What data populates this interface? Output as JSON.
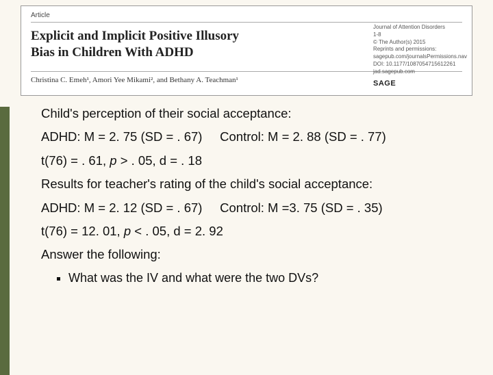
{
  "header": {
    "label": "Article",
    "title_line1": "Explicit and Implicit Positive Illusory",
    "title_line2": "Bias in Children With ADHD",
    "authors": "Christina C. Emeh¹, Amori Yee Mikami², and Bethany A. Teachman¹",
    "meta": {
      "journal": "Journal of Attention Disorders",
      "pages": "1-8",
      "copyright": "© The Author(s) 2015",
      "reprints": "Reprints and permissions:",
      "reprints_url": "sagepub.com/journalsPermissions.nav",
      "doi": "DOI: 10.1177/1087054715612261",
      "site": "jad.sagepub.com"
    },
    "publisher": "SAGE"
  },
  "body": {
    "p1": "Child's perception of their social acceptance:",
    "p2": "ADHD: M = 2. 75 (SD = . 67)     Control: M = 2. 88 (SD = . 77)",
    "p3_pre": "t(76) = . 61, ",
    "p3_ital": "p",
    "p3_post": " > . 05, d = . 18",
    "p4": "Results for teacher's rating of the child's social acceptance:",
    "p5": "ADHD: M = 2. 12 (SD = . 67)     Control: M =3. 75 (SD = . 35)",
    "p6_pre": "t(76) = 12. 01, ",
    "p6_ital": "p",
    "p6_post": " < . 05, d = 2. 92",
    "p7": "Answer the following:",
    "bullet1": "What was the IV and  what were the two DVs?"
  }
}
